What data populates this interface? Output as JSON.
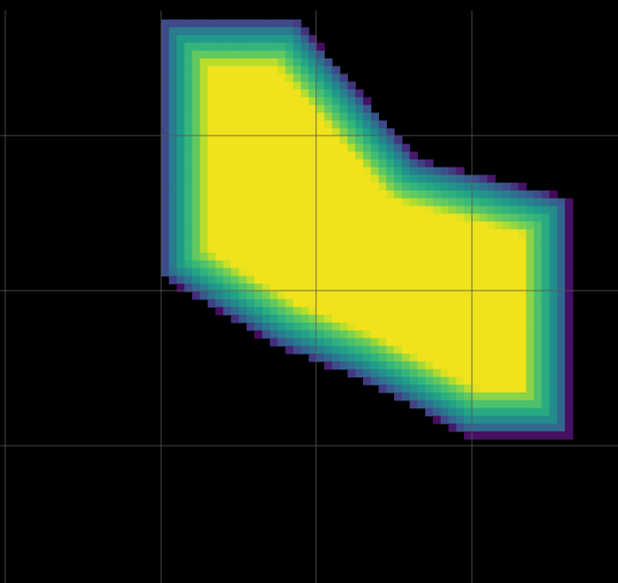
{
  "chart_data": {
    "type": "heatmap",
    "title": "",
    "xlabel": "",
    "ylabel": "",
    "colormap": "viridis",
    "background": "#000000",
    "grid": true,
    "grid_color": "#555555",
    "shape_vertices": [
      [
        0.0,
        0.0
      ],
      [
        1.75,
        0.0
      ],
      [
        3.3,
        1.8
      ],
      [
        5.25,
        2.3
      ],
      [
        5.25,
        5.35
      ],
      [
        3.93,
        5.35
      ],
      [
        2.5,
        4.6
      ],
      [
        1.5,
        4.2
      ],
      [
        0.0,
        3.3
      ]
    ],
    "interior_value": 1.0,
    "edge_falloff": 0.6
  }
}
